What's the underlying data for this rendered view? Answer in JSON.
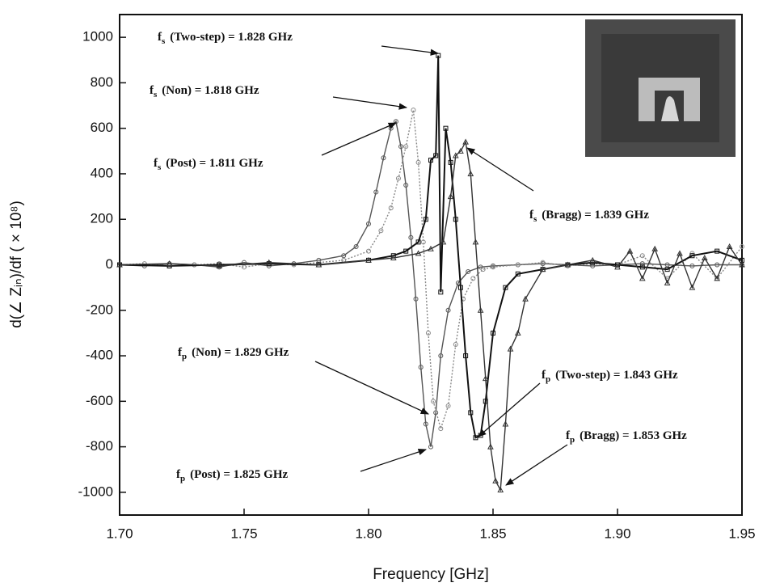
{
  "chart_data": {
    "type": "line",
    "xlabel": "Frequency [GHz]",
    "ylabel": "d(∠ Zᵢₙ)/df  ( × 10⁸)",
    "xlim": [
      1.7,
      1.95
    ],
    "ylim": [
      -1100,
      1100
    ],
    "xticks": [
      {
        "value": 1.7,
        "label": "1.70"
      },
      1.75,
      {
        "value": 1.8,
        "label": "1.80"
      },
      1.85,
      {
        "value": 1.9,
        "label": "1.90"
      },
      1.95
    ],
    "yticks": [
      -1000,
      -800,
      -600,
      -400,
      -200,
      0,
      200,
      400,
      600,
      800,
      1000
    ],
    "series": [
      {
        "color": "#555555",
        "x": [
          1.7,
          1.71,
          1.72,
          1.73,
          1.74,
          1.75,
          1.76,
          1.77,
          1.78,
          1.79,
          1.795,
          1.8,
          1.803,
          1.806,
          1.809,
          1.811,
          1.813,
          1.815,
          1.817,
          1.819,
          1.821,
          1.823,
          1.825,
          1.827,
          1.829,
          1.832,
          1.836,
          1.84,
          1.845,
          1.85,
          1.86,
          1.87,
          1.88,
          1.89,
          1.9,
          1.91,
          1.92,
          1.93,
          1.94,
          1.95
        ],
        "values": [
          0,
          -5,
          5,
          0,
          -10,
          10,
          -5,
          5,
          20,
          40,
          80,
          180,
          320,
          470,
          600,
          630,
          520,
          350,
          120,
          -150,
          -450,
          -700,
          -800,
          -650,
          -400,
          -200,
          -80,
          -30,
          -10,
          -5,
          0,
          5,
          0,
          -5,
          0,
          5,
          0,
          -5,
          0,
          0
        ]
      },
      {
        "color": "#888888",
        "x": [
          1.7,
          1.71,
          1.72,
          1.73,
          1.74,
          1.75,
          1.76,
          1.77,
          1.78,
          1.79,
          1.8,
          1.805,
          1.809,
          1.812,
          1.815,
          1.818,
          1.82,
          1.822,
          1.824,
          1.826,
          1.829,
          1.832,
          1.835,
          1.838,
          1.842,
          1.846,
          1.85,
          1.86,
          1.87,
          1.88,
          1.89,
          1.9,
          1.91,
          1.92,
          1.93,
          1.94,
          1.95
        ],
        "values": [
          0,
          5,
          -5,
          0,
          5,
          -10,
          5,
          0,
          10,
          20,
          60,
          150,
          250,
          380,
          520,
          680,
          450,
          100,
          -300,
          -600,
          -720,
          -620,
          -350,
          -150,
          -60,
          -20,
          -10,
          0,
          10,
          -5,
          5,
          0,
          40,
          -60,
          50,
          -60,
          80
        ]
      },
      {
        "color": "#111111",
        "x": [
          1.7,
          1.72,
          1.74,
          1.76,
          1.78,
          1.8,
          1.81,
          1.815,
          1.82,
          1.823,
          1.825,
          1.827,
          1.828,
          1.829,
          1.831,
          1.833,
          1.835,
          1.837,
          1.839,
          1.841,
          1.843,
          1.845,
          1.847,
          1.85,
          1.855,
          1.86,
          1.87,
          1.88,
          1.89,
          1.9,
          1.91,
          1.92,
          1.93,
          1.94,
          1.95
        ],
        "values": [
          0,
          -5,
          0,
          5,
          0,
          20,
          40,
          60,
          100,
          200,
          460,
          480,
          920,
          -120,
          600,
          450,
          200,
          -100,
          -400,
          -650,
          -760,
          -750,
          -600,
          -300,
          -100,
          -40,
          -20,
          0,
          10,
          0,
          -10,
          -20,
          40,
          60,
          20
        ]
      },
      {
        "color": "#333333",
        "x": [
          1.7,
          1.72,
          1.74,
          1.76,
          1.78,
          1.8,
          1.81,
          1.82,
          1.825,
          1.83,
          1.833,
          1.835,
          1.837,
          1.839,
          1.841,
          1.843,
          1.845,
          1.847,
          1.849,
          1.851,
          1.853,
          1.855,
          1.857,
          1.86,
          1.863,
          1.87,
          1.88,
          1.89,
          1.9,
          1.905,
          1.91,
          1.915,
          1.92,
          1.925,
          1.93,
          1.935,
          1.94,
          1.945,
          1.95
        ],
        "values": [
          0,
          5,
          -5,
          10,
          0,
          20,
          30,
          50,
          70,
          100,
          300,
          480,
          500,
          540,
          400,
          100,
          -200,
          -500,
          -800,
          -950,
          -990,
          -700,
          -370,
          -300,
          -150,
          -20,
          0,
          20,
          -10,
          60,
          -60,
          70,
          -80,
          50,
          -100,
          30,
          -60,
          80,
          0
        ]
      }
    ],
    "annotations": [
      {
        "symbol": "f",
        "sub": "s",
        "text": "(Two-step) = 1.828 GHz"
      },
      {
        "symbol": "f",
        "sub": "s",
        "text": "(Non) = 1.818 GHz"
      },
      {
        "symbol": "f",
        "sub": "s",
        "text": "(Post) = 1.811 GHz"
      },
      {
        "symbol": "f",
        "sub": "s",
        "text": "(Bragg) = 1.839 GHz"
      },
      {
        "symbol": "f",
        "sub": "p",
        "text": "(Non) = 1.829 GHz"
      },
      {
        "symbol": "f",
        "sub": "p",
        "text": "(Two-step) = 1.843 GHz"
      },
      {
        "symbol": "f",
        "sub": "p",
        "text": "(Bragg) = 1.853 GHz"
      },
      {
        "symbol": "f",
        "sub": "p",
        "text": "(Post) = 1.825 GHz"
      }
    ]
  }
}
